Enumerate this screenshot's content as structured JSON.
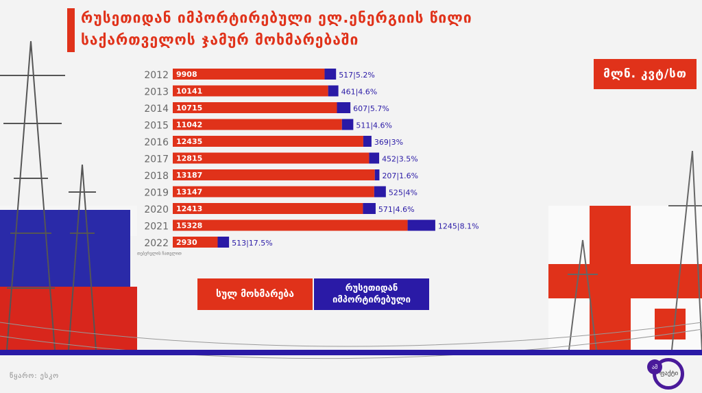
{
  "title": {
    "line1": "რუსეთიდან იმპორტირებული ელ.ენერგიის წილი",
    "line2": "საქართველოს ჯამურ მოხმარებაში"
  },
  "unit_label": "მლნ. კვტ/სთ",
  "footnote_2022": "თებერვლის ჩათვლით",
  "legend": {
    "total": "სულ მოხმარება",
    "russia": "რუსეთიდან იმპორტირებული"
  },
  "source": "წყარო: ესკო",
  "logo_text": "ფაქტი",
  "logo_badge": "ამ",
  "colors": {
    "total": "#e0321a",
    "russia": "#2a1aa6"
  },
  "chart_data": {
    "type": "bar",
    "orientation": "horizontal",
    "stacked": true,
    "categories": [
      "2012",
      "2013",
      "2014",
      "2015",
      "2016",
      "2017",
      "2018",
      "2019",
      "2020",
      "2021",
      "2022"
    ],
    "series": [
      {
        "name": "სულ მოხმარება",
        "values": [
          9908,
          10141,
          10715,
          11042,
          12435,
          12815,
          13187,
          13147,
          12413,
          15328,
          2930
        ]
      },
      {
        "name": "რუსეთიდან იმპორტირებული",
        "values": [
          517,
          461,
          607,
          511,
          369,
          452,
          207,
          525,
          571,
          1245,
          513
        ]
      }
    ],
    "russia_share_labels": [
      "5.2%",
      "4.6%",
      "5.7%",
      "4.6%",
      "3%",
      "3.5%",
      "1.6%",
      "4%",
      "4.6%",
      "8.1%",
      "17.5%"
    ]
  }
}
